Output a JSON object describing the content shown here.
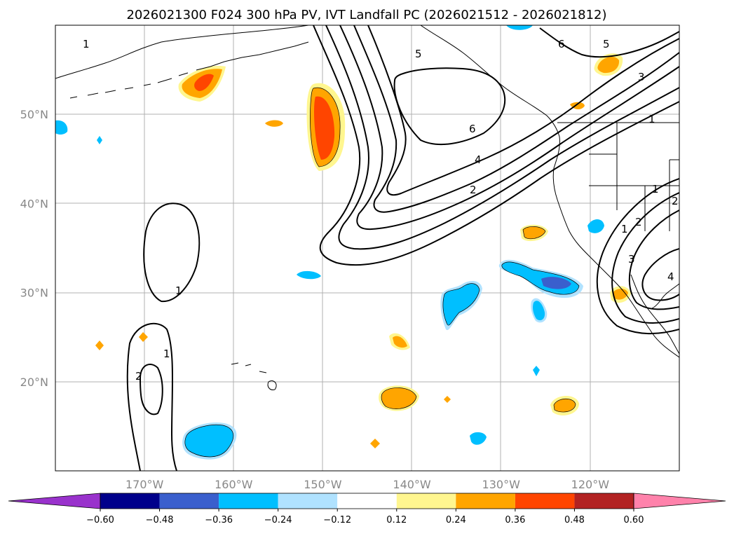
{
  "title": "2026021300 F024 300 hPa PV, IVT Landfall PC (2026021512 - 2026021812)",
  "map": {
    "lon_range": [
      -180,
      -110
    ],
    "lat_range": [
      10,
      60
    ],
    "lon_ticks": [
      -170,
      -160,
      -150,
      -140,
      -130,
      -120
    ],
    "lat_ticks": [
      20,
      30,
      40,
      50
    ],
    "lon_tick_labels": [
      "170°W",
      "160°W",
      "150°W",
      "140°W",
      "130°W",
      "120°W"
    ],
    "lat_tick_labels": [
      "20°N",
      "30°N",
      "40°N",
      "50°N"
    ]
  },
  "colorbar": {
    "levels": [
      -0.6,
      -0.48,
      -0.36,
      -0.24,
      -0.12,
      0.12,
      0.24,
      0.36,
      0.48,
      0.6
    ],
    "labels": [
      "−0.60",
      "−0.48",
      "−0.36",
      "−0.24",
      "−0.12",
      "0.12",
      "0.24",
      "0.36",
      "0.48",
      "0.60"
    ],
    "colors": [
      "#9932cc",
      "#00008b",
      "#3a5fcd",
      "#00bfff",
      "#b0e2ff",
      "#ffffff",
      "#fff68f",
      "#ffa500",
      "#ff4500",
      "#b22222",
      "#ff82ab"
    ]
  },
  "ivt_contour_labels": [
    "5",
    "6",
    "6",
    "5",
    "3",
    "1",
    "4",
    "2",
    "1",
    "1",
    "2",
    "1",
    "1",
    "2",
    "3",
    "4",
    "1",
    "2"
  ],
  "pv_anomalies": [
    {
      "name": "gulf-of-alaska-positive",
      "sign": "positive",
      "peak": 0.4
    },
    {
      "name": "aleutian-positive",
      "sign": "positive",
      "peak": 0.4
    },
    {
      "name": "dateline-negative",
      "sign": "negative",
      "peak": -0.3
    },
    {
      "name": "northeast-pacific-negative",
      "sign": "negative",
      "peak": -0.4
    },
    {
      "name": "southern-negative",
      "sign": "negative",
      "peak": -0.3
    },
    {
      "name": "subtropical-positive",
      "sign": "positive",
      "peak": 0.3
    }
  ]
}
